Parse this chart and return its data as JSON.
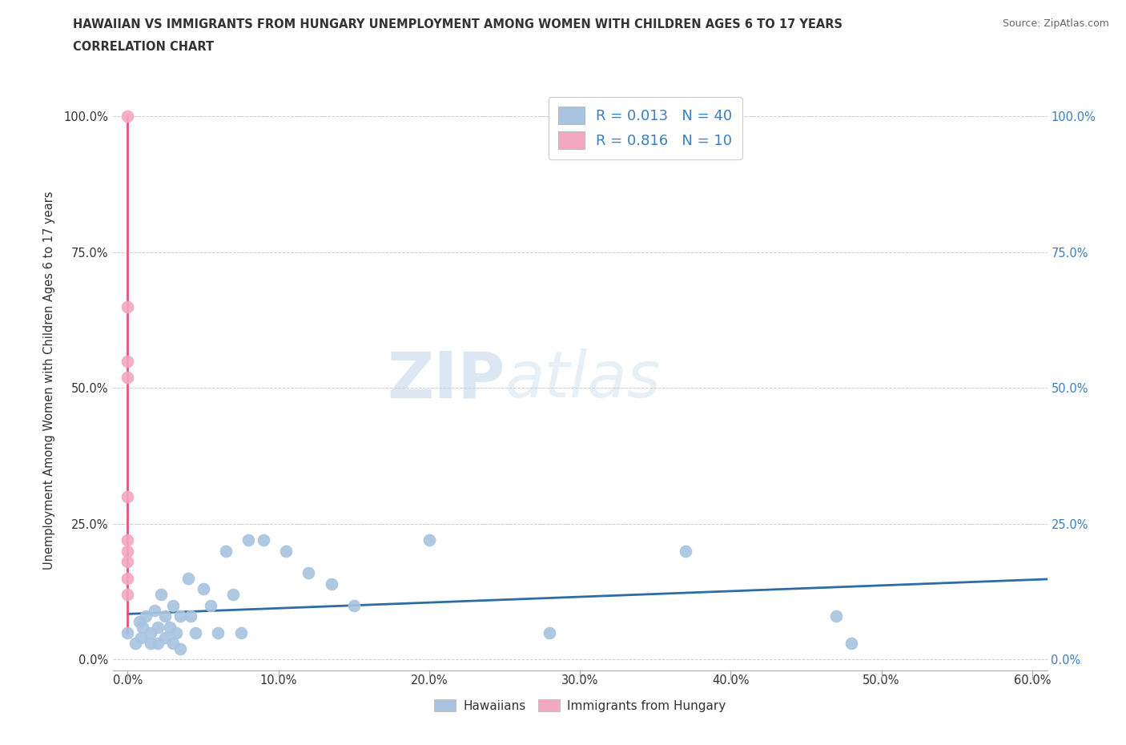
{
  "title_line1": "HAWAIIAN VS IMMIGRANTS FROM HUNGARY UNEMPLOYMENT AMONG WOMEN WITH CHILDREN AGES 6 TO 17 YEARS",
  "title_line2": "CORRELATION CHART",
  "source": "Source: ZipAtlas.com",
  "ylabel": "Unemployment Among Women with Children Ages 6 to 17 years",
  "xlim": [
    -1.0,
    61.0
  ],
  "ylim": [
    -2.0,
    105.0
  ],
  "yticks": [
    0.0,
    25.0,
    50.0,
    75.0,
    100.0
  ],
  "ytick_labels_left": [
    "0.0%",
    "25.0%",
    "50.0%",
    "75.0%",
    "100.0%"
  ],
  "ytick_labels_right": [
    "0.0%",
    "25.0%",
    "50.0%",
    "75.0%",
    "100.0%"
  ],
  "xticks": [
    0.0,
    10.0,
    20.0,
    30.0,
    40.0,
    50.0,
    60.0
  ],
  "xtick_labels": [
    "0.0%",
    "10.0%",
    "20.0%",
    "30.0%",
    "40.0%",
    "50.0%",
    "60.0%"
  ],
  "hawaiian_color": "#a8c4e0",
  "hungary_color": "#f4a8c0",
  "trendline_hawaiian_color": "#2e6da4",
  "trendline_hungary_color": "#e05878",
  "legend_label1": "R = 0.013   N = 40",
  "legend_label2": "R = 0.816   N = 10",
  "watermark_zip": "ZIP",
  "watermark_atlas": "atlas",
  "bottom_legend1": "Hawaiians",
  "bottom_legend2": "Immigrants from Hungary",
  "hawaiian_x": [
    0.0,
    0.5,
    0.8,
    0.9,
    1.0,
    1.2,
    1.5,
    1.5,
    1.8,
    2.0,
    2.0,
    2.2,
    2.5,
    2.5,
    2.8,
    3.0,
    3.0,
    3.2,
    3.5,
    3.5,
    4.0,
    4.2,
    4.5,
    5.0,
    5.5,
    6.0,
    6.5,
    7.0,
    7.5,
    8.0,
    9.0,
    10.5,
    12.0,
    13.5,
    15.0,
    20.0,
    28.0,
    37.0,
    47.0,
    48.0
  ],
  "hawaiian_y": [
    5.0,
    3.0,
    7.0,
    4.0,
    6.0,
    8.0,
    5.0,
    3.0,
    9.0,
    6.0,
    3.0,
    12.0,
    8.0,
    4.0,
    6.0,
    10.0,
    3.0,
    5.0,
    8.0,
    2.0,
    15.0,
    8.0,
    5.0,
    13.0,
    10.0,
    5.0,
    20.0,
    12.0,
    5.0,
    22.0,
    22.0,
    20.0,
    16.0,
    14.0,
    10.0,
    22.0,
    5.0,
    20.0,
    8.0,
    3.0
  ],
  "hungary_x": [
    0.0,
    0.0,
    0.0,
    0.0,
    0.0,
    0.0,
    0.0,
    0.0,
    0.0,
    0.0
  ],
  "hungary_y": [
    100.0,
    65.0,
    55.0,
    52.0,
    30.0,
    22.0,
    20.0,
    18.0,
    15.0,
    12.0
  ],
  "hungary_trendline_x": [
    0.0,
    0.0
  ],
  "hungary_trendline_y": [
    5.0,
    100.0
  ]
}
